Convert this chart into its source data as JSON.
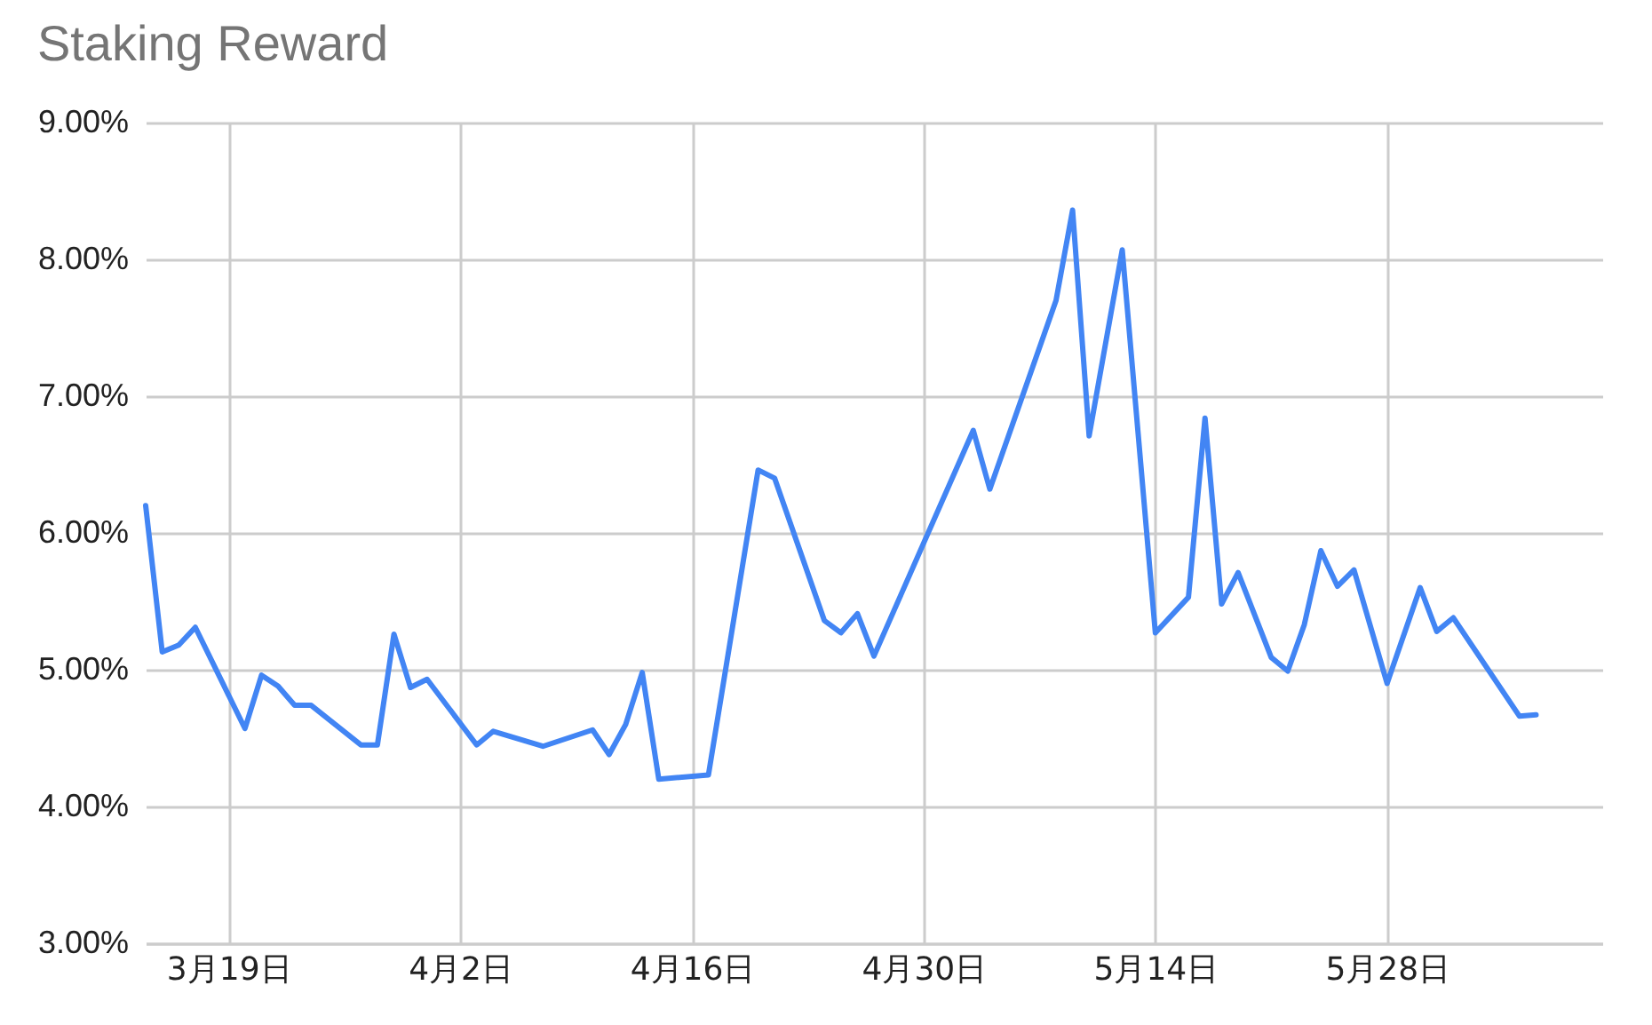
{
  "chart_data": {
    "type": "line",
    "title": "Staking Reward",
    "x": [
      "--03-14",
      "--03-15",
      "--03-16",
      "--03-17",
      "--03-20",
      "--03-21",
      "--03-22",
      "--03-23",
      "--03-24",
      "--03-27",
      "--03-28",
      "--03-29",
      "--03-30",
      "--03-31",
      "--04-03",
      "--04-04",
      "--04-07",
      "--04-10",
      "--04-11",
      "--04-12",
      "--04-13",
      "--04-14",
      "--04-17",
      "--04-20",
      "--04-21",
      "--04-24",
      "--04-25",
      "--04-26",
      "--04-27",
      "--05-03",
      "--05-04",
      "--05-08",
      "--05-09",
      "--05-10",
      "--05-12",
      "--05-14",
      "--05-16",
      "--05-17",
      "--05-18",
      "--05-19",
      "--05-21",
      "--05-22",
      "--05-23",
      "--05-24",
      "--05-25",
      "--05-26",
      "--05-28",
      "--05-30",
      "--05-31",
      "--06-01",
      "--06-05",
      "--06-06"
    ],
    "series": [
      {
        "color": "#4285f4",
        "values": [
          6.2,
          5.13,
          5.18,
          5.31,
          4.57,
          4.96,
          4.88,
          4.74,
          4.74,
          4.45,
          4.45,
          5.26,
          4.87,
          4.93,
          4.45,
          4.55,
          4.44,
          4.56,
          4.38,
          4.6,
          4.98,
          4.2,
          4.23,
          6.46,
          6.4,
          5.36,
          5.27,
          5.41,
          5.1,
          6.75,
          6.32,
          7.7,
          8.36,
          6.71,
          8.07,
          5.27,
          5.53,
          6.84,
          5.48,
          5.71,
          5.09,
          4.99,
          5.33,
          5.87,
          5.61,
          5.73,
          4.9,
          5.6,
          5.28,
          5.38,
          4.66,
          4.67
        ]
      }
    ],
    "xlim": [
      "--03-14",
      "--06-10"
    ],
    "xticks": [
      {
        "value": "--03-19",
        "label": "3月19日"
      },
      {
        "value": "--04-02",
        "label": "4月2日"
      },
      {
        "value": "--04-16",
        "label": "4月16日"
      },
      {
        "value": "--04-30",
        "label": "4月30日"
      },
      {
        "value": "--05-14",
        "label": "5月14日"
      },
      {
        "value": "--05-28",
        "label": "5月28日"
      }
    ],
    "ylim": [
      3,
      9
    ],
    "yticks": [
      {
        "value": 3,
        "label": "3.00%"
      },
      {
        "value": 4,
        "label": "4.00%"
      },
      {
        "value": 5,
        "label": "5.00%"
      },
      {
        "value": 6,
        "label": "6.00%"
      },
      {
        "value": 7,
        "label": "7.00%"
      },
      {
        "value": 8,
        "label": "8.00%"
      },
      {
        "value": 9,
        "label": "9.00%"
      }
    ],
    "grid": true,
    "legend": false
  }
}
